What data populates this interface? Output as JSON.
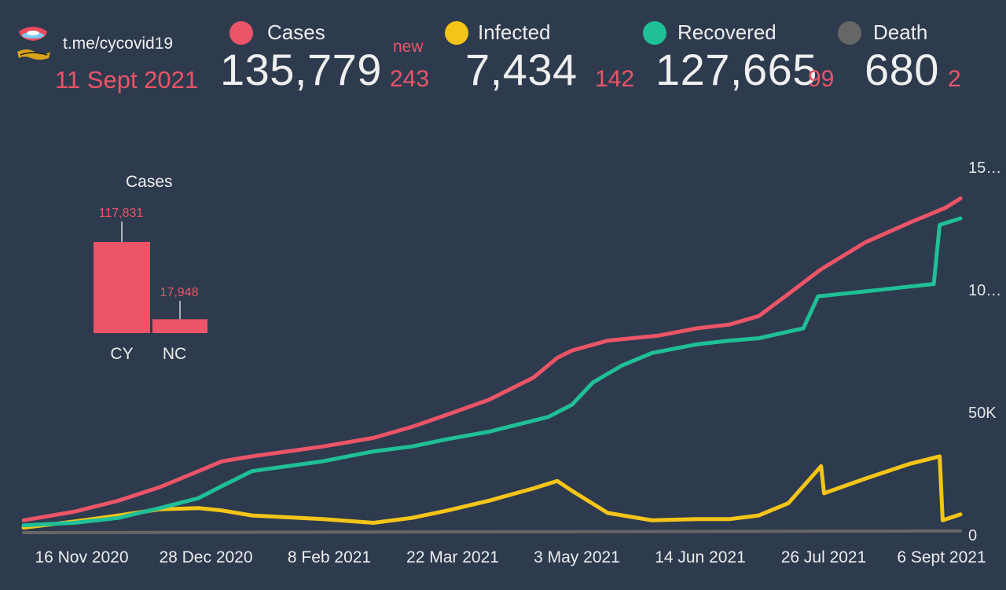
{
  "header": {
    "source": "t.me/cycovid19",
    "date": "11 Sept 2021",
    "new_label": "new"
  },
  "stats": [
    {
      "label": "Cases",
      "value": "135,779",
      "delta": "243",
      "color": "#ec5468"
    },
    {
      "label": "Infected",
      "value": "7,434",
      "delta": "142",
      "color": "#f4c518"
    },
    {
      "label": "Recovered",
      "value": "127,665",
      "delta": "99",
      "color": "#1fbf97"
    },
    {
      "label": "Death",
      "value": "680",
      "delta": "2",
      "color": "#666666"
    }
  ],
  "chart_data": [
    {
      "type": "line",
      "x_ticks": [
        "16 Nov 2020",
        "28 Dec 2020",
        "8 Feb 2021",
        "22 Mar 2021",
        "3 May 2021",
        "14 Jun 2021",
        "26 Jul 2021",
        "6 Sept 2021"
      ],
      "y_ticks": [
        "0",
        "50K",
        "10…",
        "15…"
      ],
      "ylim": [
        0,
        150000
      ],
      "grid": false,
      "series": [
        {
          "name": "Cases",
          "color": "#ec5468",
          "x": [
            "2020-10-30",
            "2020-11-16",
            "2020-12-01",
            "2020-12-15",
            "2020-12-28",
            "2021-01-05",
            "2021-01-15",
            "2021-02-08",
            "2021-02-25",
            "2021-03-10",
            "2021-03-22",
            "2021-04-05",
            "2021-04-20",
            "2021-04-28",
            "2021-05-03",
            "2021-05-15",
            "2021-06-01",
            "2021-06-14",
            "2021-06-25",
            "2021-07-05",
            "2021-07-15",
            "2021-07-26",
            "2021-08-10",
            "2021-08-25",
            "2021-09-06",
            "2021-09-11"
          ],
          "values": [
            5000,
            8500,
            13000,
            18500,
            25000,
            29000,
            31000,
            35000,
            38500,
            43000,
            48000,
            54000,
            63000,
            71000,
            74000,
            78000,
            80000,
            83000,
            84500,
            88000,
            97000,
            107000,
            118000,
            126000,
            132000,
            135779
          ]
        },
        {
          "name": "Recovered",
          "color": "#1fbf97",
          "x": [
            "2020-10-30",
            "2020-11-16",
            "2020-12-01",
            "2020-12-15",
            "2020-12-28",
            "2021-01-05",
            "2021-01-15",
            "2021-02-08",
            "2021-02-25",
            "2021-03-10",
            "2021-03-22",
            "2021-04-05",
            "2021-04-15",
            "2021-04-25",
            "2021-05-03",
            "2021-05-10",
            "2021-05-20",
            "2021-05-30",
            "2021-06-14",
            "2021-06-25",
            "2021-07-05",
            "2021-07-20",
            "2021-07-25",
            "2021-08-10",
            "2021-08-25",
            "2021-09-02",
            "2021-09-04",
            "2021-09-11"
          ],
          "values": [
            3000,
            4000,
            6000,
            10000,
            14000,
            19000,
            25000,
            29000,
            33000,
            35000,
            38000,
            41000,
            44000,
            47000,
            52000,
            61000,
            68000,
            73000,
            76500,
            78000,
            79000,
            83000,
            96000,
            98000,
            100000,
            101000,
            125000,
            127665
          ]
        },
        {
          "name": "Infected",
          "color": "#f4c518",
          "x": [
            "2020-10-30",
            "2020-11-16",
            "2020-12-01",
            "2020-12-15",
            "2020-12-28",
            "2021-01-05",
            "2021-01-15",
            "2021-02-08",
            "2021-02-25",
            "2021-03-10",
            "2021-03-22",
            "2021-04-05",
            "2021-04-20",
            "2021-04-28",
            "2021-05-03",
            "2021-05-15",
            "2021-05-30",
            "2021-06-14",
            "2021-06-25",
            "2021-07-05",
            "2021-07-15",
            "2021-07-26",
            "2021-07-27",
            "2021-08-10",
            "2021-08-25",
            "2021-09-04",
            "2021-09-05",
            "2021-09-11"
          ],
          "values": [
            2000,
            4500,
            7000,
            9500,
            10000,
            9000,
            7000,
            5500,
            4000,
            6000,
            9000,
            13000,
            18000,
            21000,
            17000,
            8000,
            5000,
            5500,
            5500,
            7000,
            12000,
            27000,
            16000,
            22000,
            28000,
            31000,
            5000,
            7434
          ]
        },
        {
          "name": "Death",
          "color": "#666666",
          "x": [
            "2020-10-30",
            "2021-09-11"
          ],
          "values": [
            0,
            680
          ]
        }
      ]
    },
    {
      "type": "bar",
      "title": "Cases",
      "categories": [
        "CY",
        "NC"
      ],
      "values": [
        117831,
        17948
      ],
      "value_labels": [
        "117,831",
        "17,948"
      ],
      "color": "#ec5468"
    }
  ]
}
